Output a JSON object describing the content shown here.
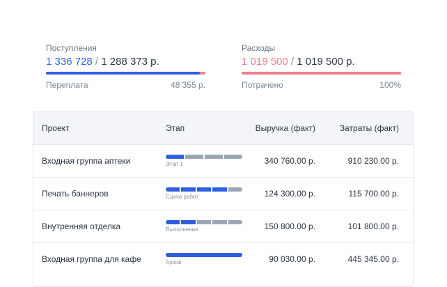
{
  "income": {
    "label": "Поступления",
    "actual": "1 336 728",
    "planned": "1 288 373 р.",
    "progress_fraction": 0.964,
    "overpay_label": "Переплата",
    "overpay_value": "48 355 р."
  },
  "expense": {
    "label": "Расходы",
    "actual": "1 019 500",
    "planned": "1 019 500 р.",
    "progress_fraction": 1.0,
    "spent_label": "Потрачено",
    "spent_value": "100%"
  },
  "table": {
    "headers": {
      "project": "Проект",
      "stage": "Этап",
      "revenue": "Выручка (факт)",
      "costs": "Затраты (факт)"
    },
    "rows": [
      {
        "project": "Входная группа аптеки",
        "stage": "Этап 1",
        "segments_total": 4,
        "segments_done": 1,
        "revenue": "340 760.00 р.",
        "costs": "910 230.00 р."
      },
      {
        "project": "Печать баннеров",
        "stage": "Сдача работ",
        "segments_total": 5,
        "segments_done": 4,
        "revenue": "124 300.00 р.",
        "costs": "115 700.00 р."
      },
      {
        "project": "Внутренняя отделка",
        "stage": "Выполнение",
        "segments_total": 5,
        "segments_done": 2,
        "revenue": "150 800.00 р.",
        "costs": "101 800.00 р."
      },
      {
        "project": "Входная группа для кафе",
        "stage": "Архив",
        "segments_total": 1,
        "segments_done": 1,
        "revenue": "90 030.00 р.",
        "costs": "445 345.00 р."
      }
    ]
  },
  "colors": {
    "accent_blue": "#2f5fe0",
    "accent_pink": "#ef7d8d",
    "segment_pending": "#9aa6b4"
  }
}
